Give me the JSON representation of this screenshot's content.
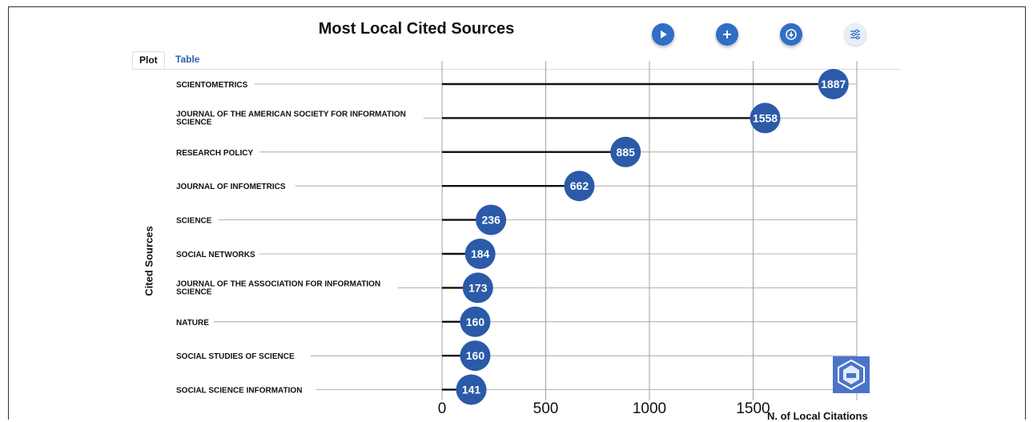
{
  "tabs": {
    "plot": "Plot",
    "table": "Table"
  },
  "toolbar": {
    "play_icon": "play-icon",
    "add_icon": "plus-icon",
    "download_icon": "download-icon",
    "settings_icon": "sliders-icon"
  },
  "colors": {
    "accent": "#2b5aa8",
    "line": "#111111",
    "grid": "#888888"
  },
  "chart_data": {
    "type": "lollipop",
    "title": "Most Local Cited Sources",
    "xlabel": "N. of Local Citations",
    "ylabel": "Cited Sources",
    "xlim": [
      0,
      2000
    ],
    "xticks": [
      0,
      500,
      1000,
      1500
    ],
    "grid": true,
    "categories": [
      "SCIENTOMETRICS",
      "JOURNAL OF THE AMERICAN SOCIETY FOR INFORMATION SCIENCE",
      "RESEARCH POLICY",
      "JOURNAL OF INFOMETRICS",
      "SCIENCE",
      "SOCIAL NETWORKS",
      "JOURNAL OF THE ASSOCIATION FOR INFORMATION SCIENCE",
      "NATURE",
      "SOCIAL STUDIES OF SCIENCE",
      "SOCIAL SCIENCE INFORMATION"
    ],
    "values": [
      1887,
      1558,
      885,
      662,
      236,
      184,
      173,
      160,
      160,
      141
    ]
  }
}
